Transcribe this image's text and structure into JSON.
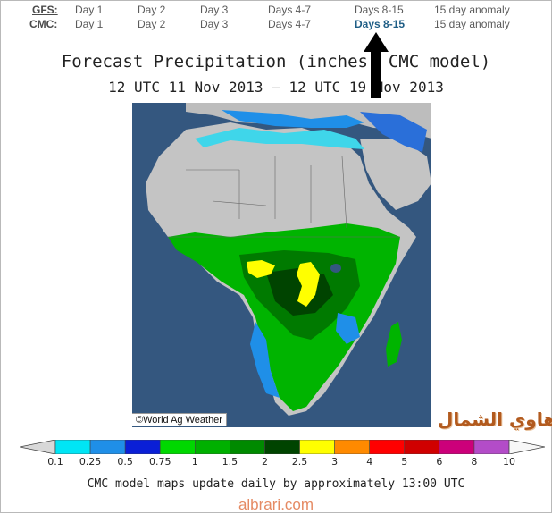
{
  "nav": {
    "rows": [
      {
        "label": "GFS:",
        "links": [
          "Day 1",
          "Day 2",
          "Day 3",
          "Days 4-7",
          "Days 8-15",
          "15 day anomaly"
        ],
        "active_index": -1
      },
      {
        "label": "CMC:",
        "links": [
          "Day 1",
          "Day 2",
          "Day 3",
          "Days 4-7",
          "Days 8-15",
          "15 day anomaly"
        ],
        "active_index": 4
      }
    ]
  },
  "map": {
    "title": "Forecast Precipitation (inches, CMC model)",
    "subtitle": "12 UTC 11 Nov 2013 — 12 UTC 19 Nov 2013",
    "credit": "©World Ag Weather",
    "watermark_arabic": "هاوي الشمال"
  },
  "legend": {
    "ticks": [
      "0.1",
      "0.25",
      "0.5",
      "0.75",
      "1",
      "1.5",
      "2",
      "2.5",
      "3",
      "4",
      "5",
      "6",
      "8",
      "10"
    ],
    "colors": [
      "#00e5f5",
      "#1f8fe8",
      "#0a1fd6",
      "#00d800",
      "#00b000",
      "#008a00",
      "#004400",
      "#ffff00",
      "#ff8a00",
      "#ff0000",
      "#d00000",
      "#cc007a",
      "#b34cc8"
    ],
    "footnote": "CMC model maps update daily by approximately 13:00 UTC"
  },
  "site": "albrari.com"
}
